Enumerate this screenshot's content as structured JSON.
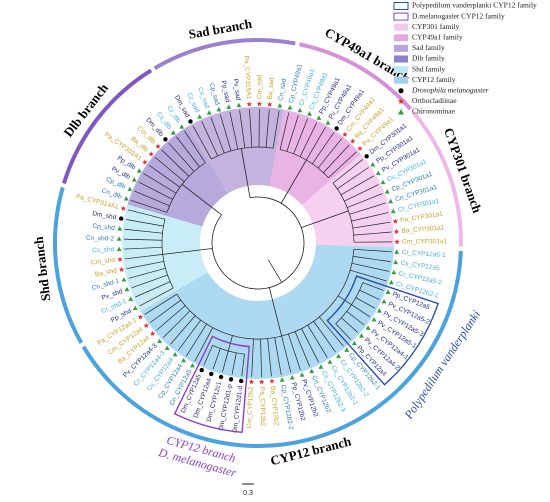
{
  "title_scale": null,
  "legend": [
    {
      "label": "Polypedilum vanderplanki CYP12 family",
      "color": "#2a4fb0",
      "style": "outline"
    },
    {
      "label": "D.melanogaster CYP12 family",
      "color": "#8a3fc9",
      "style": "outline"
    },
    {
      "label": "CYP301 family",
      "color": "#f3c8ee",
      "style": "fill"
    },
    {
      "label": "CYP49a1 family",
      "color": "#e6a6e0",
      "style": "fill"
    },
    {
      "label": "Sad family",
      "color": "#b9a6d8",
      "style": "fill"
    },
    {
      "label": "Dlb family",
      "color": "#8f7fcf",
      "style": "fill"
    },
    {
      "label": "Shd family",
      "color": "#bfeaf5",
      "style": "fill"
    },
    {
      "label": "CYP12 family",
      "color": "#9fd3f0",
      "style": "fill"
    },
    {
      "label": "Drosophila melanogaster",
      "color": "#000000",
      "style": "circle"
    },
    {
      "label": "Orthocladiinae",
      "color": "#e03030",
      "style": "star"
    },
    {
      "label": "Chironominae",
      "color": "#2e9e3e",
      "style": "triangle"
    }
  ],
  "branches": [
    {
      "label": "Sad branch",
      "color": "#b9a6d8",
      "arc_color": "#9b7fd0",
      "leaves": [
        {
          "label": "Dm_sad",
          "color": "#2b2b6b",
          "marker": "#000000"
        },
        {
          "label": "Cr_sad",
          "color": "#3fb0d8",
          "marker": "#2e9e3e"
        },
        {
          "label": "Cs_sad",
          "color": "#3fb0d8",
          "marker": "#2e9e3e"
        },
        {
          "label": "Cp_sad",
          "color": "#2d7fb8",
          "marker": "#2e9e3e"
        },
        {
          "label": "Pp_sad",
          "color": "#1c2f8a",
          "marker": "#2e9e3e"
        },
        {
          "label": "Pv_sad",
          "color": "#1c2f8a",
          "marker": "#2e9e3e"
        },
        {
          "label": "Pa_CYP315A1",
          "color": "#c9a227",
          "marker": "#e03030"
        },
        {
          "label": "Cm_sad",
          "color": "#c9a227",
          "marker": "#e03030"
        },
        {
          "label": "Ba_sad",
          "color": "#c9a227",
          "marker": "#e03030"
        },
        {
          "label": "Cn_sad",
          "color": "#2d7fb8",
          "marker": "#2e9e3e"
        }
      ]
    },
    {
      "label": "CYP49a1 branch",
      "color": "#e6a6e0",
      "arc_color": "#d68fd8",
      "leaves": [
        {
          "label": "Cp_CYP49a1",
          "color": "#2d7fb8",
          "marker": "#2e9e3e"
        },
        {
          "label": "Cr_CYP49a1",
          "color": "#3fb0d8",
          "marker": "#2e9e3e"
        },
        {
          "label": "Cs_CYP49a1",
          "color": "#3fb0d8",
          "marker": "#2e9e3e"
        },
        {
          "label": "Pp_CYP49a1",
          "color": "#1c2f8a",
          "marker": "#2e9e3e"
        },
        {
          "label": "Pv_CYP49a1",
          "color": "#1c2f8a",
          "marker": "#2e9e3e"
        },
        {
          "label": "Dm_CYP49a1",
          "color": "#2b2b6b",
          "marker": "#000000"
        },
        {
          "label": "Cm_CYP49a1",
          "color": "#c9a227",
          "marker": "#e03030"
        },
        {
          "label": "Ba_CYP49a1",
          "color": "#c9a227",
          "marker": "#e03030"
        },
        {
          "label": "Pa_CYP49a1",
          "color": "#c9a227",
          "marker": "#e03030"
        }
      ]
    },
    {
      "label": "CYP301 branch",
      "color": "#f3c8ee",
      "arc_color": "#f0b7ea",
      "leaves": [
        {
          "label": "Dm_CYP301a1",
          "color": "#2b2b6b",
          "marker": "#000000"
        },
        {
          "label": "Pp_CYP301a1",
          "color": "#1c2f8a",
          "marker": "#2e9e3e"
        },
        {
          "label": "Pv_CYP301a1",
          "color": "#1c2f8a",
          "marker": "#2e9e3e"
        },
        {
          "label": "Cs_CYP301a1",
          "color": "#3fb0d8",
          "marker": "#2e9e3e"
        },
        {
          "label": "Cp_CYP301a1",
          "color": "#2d7fb8",
          "marker": "#2e9e3e"
        },
        {
          "label": "Cn_CYP301a1",
          "color": "#2d7fb8",
          "marker": "#2e9e3e"
        },
        {
          "label": "Cr_CYP301a1",
          "color": "#3fb0d8",
          "marker": "#2e9e3e"
        },
        {
          "label": "Pa_CYP301a1",
          "color": "#c9a227",
          "marker": "#e03030"
        },
        {
          "label": "Ba_CYP301a1",
          "color": "#c9a227",
          "marker": "#e03030"
        },
        {
          "label": "Cm_CYP301a1",
          "color": "#c9a227",
          "marker": "#e03030"
        }
      ]
    },
    {
      "label": "CYP12 branch",
      "color": "#9fd3f0",
      "arc_color": "#4aa3df",
      "leaves": [
        {
          "label": "Cr_CYP12a5-1",
          "color": "#3fb0d8",
          "marker": "#2e9e3e"
        },
        {
          "label": "Cs_CYP12a5",
          "color": "#3fb0d8",
          "marker": "#2e9e3e"
        },
        {
          "label": "Cr_CYP12a5-2",
          "color": "#3fb0d8",
          "marker": "#2e9e3e"
        },
        {
          "label": "Cr_CYP12b2-1",
          "color": "#3fb0d8",
          "marker": "#2e9e3e"
        },
        {
          "label": [
            "Polypedilum vanderplanki"
          ],
          "color": "#2a4fb0",
          "leaves": [
            {
              "label": "Pp_CYP12a5",
              "color": "#1c2f8a",
              "marker": "#2e9e3e"
            },
            {
              "label": "Pv_CYP12a5-2",
              "color": "#1c2f8a",
              "marker": "#2e9e3e"
            },
            {
              "label": "Pv_CYP12a5-3",
              "color": "#1c2f8a",
              "marker": "#2e9e3e"
            },
            {
              "label": "Pv_CYP12a5-1",
              "color": "#1c2f8a",
              "marker": "#2e9e3e"
            },
            {
              "label": "Pv_CYP12a4-1",
              "color": "#1c2f8a",
              "marker": "#2e9e3e"
            },
            {
              "label": "Pv_CYP12a4-2",
              "color": "#1c2f8a",
              "marker": "#2e9e3e"
            },
            {
              "label": "Pp_CYP12a4",
              "color": "#1c2f8a",
              "marker": "#2e9e3e"
            }
          ]
        },
        {
          "label": "Cp_CYP12b2-1",
          "color": "#2d7fb8",
          "marker": "#2e9e3e"
        },
        {
          "label": "Cr_CYP12b2-2",
          "color": "#3fb0d8",
          "marker": "#2e9e3e"
        },
        {
          "label": "Cs_CYP12b2-1",
          "color": "#3fb0d8",
          "marker": "#2e9e3e"
        },
        {
          "label": "Cs_CYP12b2-3",
          "color": "#3fb0d8",
          "marker": "#2e9e3e"
        },
        {
          "label": "Cn_CYP12b2",
          "color": "#2d7fb8",
          "marker": "#2e9e3e"
        },
        {
          "label": "Pv_CYP12b2",
          "color": "#1c2f8a",
          "marker": "#2e9e3e"
        },
        {
          "label": "Pp_CYP12b2",
          "color": "#1c2f8a",
          "marker": "#2e9e3e"
        },
        {
          "label": "Cp_CYP12b2-2",
          "color": "#2d7fb8",
          "marker": "#2e9e3e"
        },
        {
          "label": "Ba_CYP12b2",
          "color": "#c9a227",
          "marker": "#e03030"
        },
        {
          "label": "Pa_CYP12b2",
          "color": "#c9a227",
          "marker": "#e03030"
        },
        {
          "label": "Cm_CYP12b2",
          "color": "#c9a227",
          "marker": "#e03030"
        },
        {
          "label": [
            "D. melanogaster",
            "CYP12 branch"
          ],
          "color": "#8a3fc9",
          "leaves": [
            {
              "label": "Dm_CYP12d1-d",
              "color": "#2b2b6b",
              "marker": "#000000"
            },
            {
              "label": "Dm_CYP12d1-p",
              "color": "#2b2b6b",
              "marker": "#000000"
            },
            {
              "label": "Dm_CYP12c1",
              "color": "#2b2b6b",
              "marker": "#000000"
            },
            {
              "label": "Dm_CYP12a4",
              "color": "#2b2b6b",
              "marker": "#000000"
            },
            {
              "label": "Dm_CYP12a5",
              "color": "#2b2b6b",
              "marker": "#000000"
            }
          ]
        },
        {
          "label": "Cn_CYP12a5",
          "color": "#2d7fb8",
          "marker": "#2e9e3e"
        },
        {
          "label": "Cp_CYP12a4",
          "color": "#2d7fb8",
          "marker": "#2e9e3e"
        },
        {
          "label": "Cs_CYP12a4",
          "color": "#3fb0d8",
          "marker": "#2e9e3e"
        },
        {
          "label": "Cr_CYP12a4-3",
          "color": "#3fb0d8",
          "marker": "#2e9e3e"
        },
        {
          "label": "Pv_CYP12a4-3",
          "color": "#1c2f8a",
          "marker": "#2e9e3e"
        },
        {
          "label": "Ba_CYP12a4",
          "color": "#c9a227",
          "marker": "#e03030"
        },
        {
          "label": "Cm_CYP12a4",
          "color": "#c9a227",
          "marker": "#e03030"
        },
        {
          "label": "Pa_CYP12a4-1",
          "color": "#c9a227",
          "marker": "#e03030"
        }
      ]
    },
    {
      "label": "Shd branch",
      "color": "#bfeaf5",
      "arc_color": "#4aa3df",
      "leaves": [
        {
          "label": "Pp_shd",
          "color": "#1c2f8a",
          "marker": "#2e9e3e"
        },
        {
          "label": "Cr_shd-1",
          "color": "#3fb0d8",
          "marker": "#2e9e3e"
        },
        {
          "label": "Pv_shd",
          "color": "#1c2f8a",
          "marker": "#2e9e3e"
        },
        {
          "label": "Cn_shd-1",
          "color": "#2d7fb8",
          "marker": "#2e9e3e"
        },
        {
          "label": "Ba_shd",
          "color": "#c9a227",
          "marker": "#e03030"
        },
        {
          "label": "Cm_shd",
          "color": "#c9a227",
          "marker": "#e03030"
        },
        {
          "label": "Cs_shd",
          "color": "#3fb0d8",
          "marker": "#2e9e3e"
        },
        {
          "label": "Cn_shd-2",
          "color": "#2d7fb8",
          "marker": "#2e9e3e"
        },
        {
          "label": "Cp_shd",
          "color": "#2d7fb8",
          "marker": "#2e9e3e"
        },
        {
          "label": "Dm_shd",
          "color": "#2b2b6b",
          "marker": "#000000"
        },
        {
          "label": "Pa_CYP314A1",
          "color": "#c9a227",
          "marker": "#e03030"
        }
      ]
    },
    {
      "label": "Dlb branch",
      "color": "#a99ad6",
      "arc_color": "#7e57c2",
      "leaves": [
        {
          "label": "Cn_dlb",
          "color": "#2d7fb8",
          "marker": "#2e9e3e"
        },
        {
          "label": "Cp_dlb",
          "color": "#2d7fb8",
          "marker": "#2e9e3e"
        },
        {
          "label": "Pv_dlb",
          "color": "#1c2f8a",
          "marker": "#2e9e3e"
        },
        {
          "label": "Pp_dlb",
          "color": "#1c2f8a",
          "marker": "#2e9e3e"
        },
        {
          "label": "Pa_CYP302A1",
          "color": "#c9a227",
          "marker": "#e03030"
        },
        {
          "label": "Ba_dlb",
          "color": "#c9a227",
          "marker": "#e03030"
        },
        {
          "label": "Cm_dlb",
          "color": "#c9a227",
          "marker": "#e03030"
        },
        {
          "label": "Dm_dlb",
          "color": "#2b2b6b",
          "marker": "#000000"
        },
        {
          "label": "Cs_dlb",
          "color": "#3fb0d8",
          "marker": "#2e9e3e"
        },
        {
          "label": "Cr_dlb",
          "color": "#3fb0d8",
          "marker": "#2e9e3e"
        }
      ]
    }
  ],
  "scale_bar": 0.3
}
